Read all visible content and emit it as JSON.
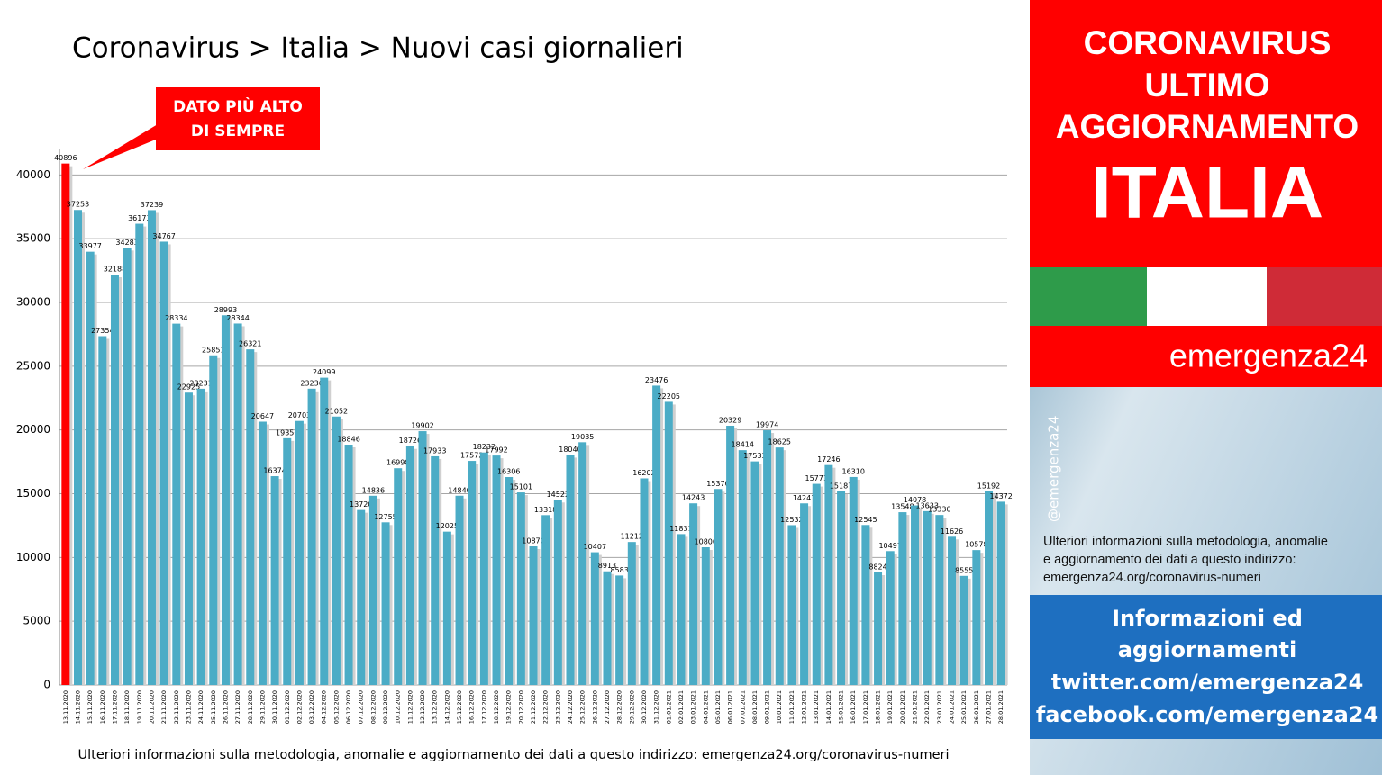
{
  "chart_data": {
    "type": "bar",
    "title": "Coronavirus > Italia > Nuovi casi giornalieri",
    "annotation": [
      "DATO PIÙ ALTO",
      "DI SEMPRE"
    ],
    "note": "Ulteriori informazioni sulla metodologia, anomalie e aggiornamento dei dati a questo indirizzo: emergenza24.org/coronavirus-numeri",
    "categories": [
      "13.11.2020",
      "14.11.2020",
      "15.11.2020",
      "16.11.2020",
      "17.11.2020",
      "18.11.2020",
      "19.11.2020",
      "20.11.2020",
      "21.11.2020",
      "22.11.2020",
      "23.11.2020",
      "24.11.2020",
      "25.11.2020",
      "26.11.2020",
      "27.11.2020",
      "28.11.2020",
      "29.11.2020",
      "30.11.2020",
      "01.12.2020",
      "02.12.2020",
      "03.12.2020",
      "04.12.2020",
      "05.12.2020",
      "06.12.2020",
      "07.12.2020",
      "08.12.2020",
      "09.12.2020",
      "10.12.2020",
      "11.12.2020",
      "12.12.2020",
      "13.12.2020",
      "14.12.2020",
      "15.12.2020",
      "16.12.2020",
      "17.12.2020",
      "18.12.2020",
      "19.12.2020",
      "20.12.2020",
      "21.12.2020",
      "22.12.2020",
      "23.12.2020",
      "24.12.2020",
      "25.12.2020",
      "26.12.2020",
      "27.12.2020",
      "28.12.2020",
      "29.12.2020",
      "30.12.2020",
      "31.12.2020",
      "01.01.2021",
      "02.01.2021",
      "03.01.2021",
      "04.01.2021",
      "05.01.2021",
      "06.01.2021",
      "07.01.2021",
      "08.01.2021",
      "09.01.2021",
      "10.01.2021",
      "11.01.2021",
      "12.01.2021",
      "13.01.2021",
      "14.01.2021",
      "15.01.2021",
      "16.01.2021",
      "17.01.2021",
      "18.01.2021",
      "19.01.2021",
      "20.01.2021",
      "21.01.2021",
      "22.01.2021",
      "23.01.2021",
      "24.01.2021",
      "25.01.2021",
      "26.01.2021",
      "27.01.2021",
      "28.01.2021"
    ],
    "values": [
      40896,
      37253,
      33977,
      27354,
      32188,
      34283,
      36173,
      37239,
      34767,
      28334,
      22925,
      23231,
      25851,
      28993,
      28344,
      26321,
      20647,
      16374,
      19350,
      20703,
      23236,
      24099,
      21052,
      18846,
      13720,
      14836,
      12755,
      16998,
      18726,
      19902,
      17933,
      12025,
      14840,
      17572,
      18232,
      17992,
      16306,
      15101,
      10870,
      13318,
      14522,
      18040,
      19035,
      10407,
      8913,
      8583,
      11212,
      16202,
      23476,
      22205,
      11831,
      14243,
      10800,
      15370,
      20329,
      18414,
      17533,
      19974,
      18625,
      12532,
      14241,
      15771,
      17246,
      15187,
      16310,
      12545,
      8824,
      10497,
      13548,
      14078,
      13633,
      13330,
      11626,
      8555,
      10578,
      15192,
      14372
    ],
    "colors": [
      "#ff0000",
      "#4bacc6"
    ],
    "ylim": [
      0,
      42000
    ],
    "yticks": [
      0,
      5000,
      10000,
      15000,
      20000,
      25000,
      30000,
      35000,
      40000
    ],
    "grid": true
  },
  "side_panel": {
    "header": [
      "CORONAVIRUS",
      "ULTIMO",
      "AGGIORNAMENTO"
    ],
    "country": "ITALIA",
    "brand": "emergenza24",
    "handle": "@emergenza24",
    "info": [
      "Ulteriori informazioni sulla metodologia, anomalie",
      "e aggiornamento dei dati a questo indirizzo:",
      "emergenza24.org/coronavirus-numeri"
    ],
    "contacts": [
      "Informazioni ed",
      "aggiornamenti",
      "twitter.com/emergenza24",
      "facebook.com/emergenza24"
    ]
  }
}
